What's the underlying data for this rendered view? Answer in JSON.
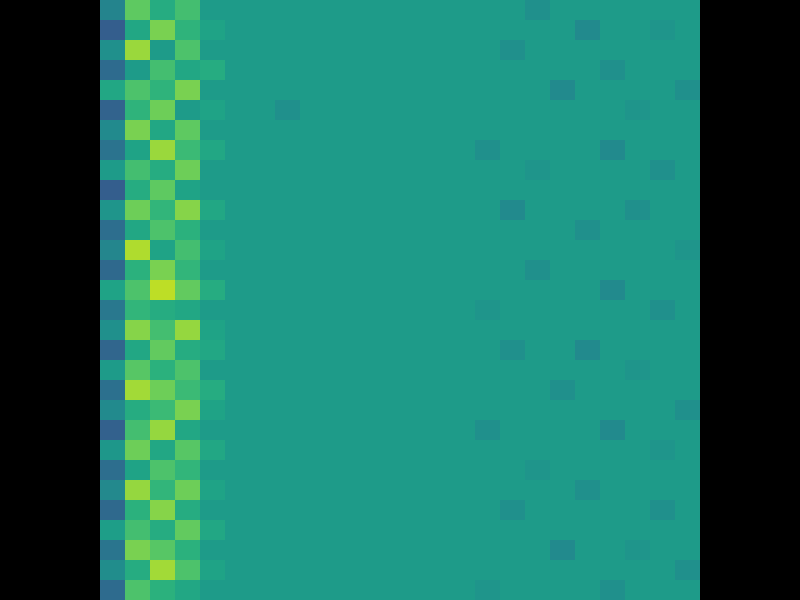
{
  "chart_data": {
    "type": "heatmap",
    "color": "viridis",
    "tick_labels": false,
    "color_range": [
      0,
      1
    ],
    "cells": [
      [
        0.45,
        0.75,
        0.62,
        0.7,
        0.55,
        0.55,
        0.55,
        0.55,
        0.55,
        0.55,
        0.55,
        0.55,
        0.55,
        0.55,
        0.55,
        0.55,
        0.55,
        0.5,
        0.55,
        0.55,
        0.55,
        0.55,
        0.55,
        0.55
      ],
      [
        0.3,
        0.6,
        0.8,
        0.65,
        0.58,
        0.55,
        0.55,
        0.55,
        0.55,
        0.55,
        0.55,
        0.55,
        0.55,
        0.55,
        0.55,
        0.55,
        0.55,
        0.55,
        0.55,
        0.48,
        0.55,
        0.55,
        0.52,
        0.55
      ],
      [
        0.5,
        0.85,
        0.55,
        0.72,
        0.55,
        0.55,
        0.55,
        0.55,
        0.55,
        0.55,
        0.55,
        0.55,
        0.55,
        0.55,
        0.55,
        0.55,
        0.5,
        0.55,
        0.55,
        0.55,
        0.55,
        0.55,
        0.55,
        0.55
      ],
      [
        0.35,
        0.55,
        0.7,
        0.6,
        0.62,
        0.55,
        0.55,
        0.55,
        0.55,
        0.55,
        0.55,
        0.55,
        0.55,
        0.55,
        0.55,
        0.55,
        0.55,
        0.55,
        0.55,
        0.55,
        0.5,
        0.55,
        0.55,
        0.55
      ],
      [
        0.6,
        0.72,
        0.65,
        0.8,
        0.55,
        0.55,
        0.55,
        0.55,
        0.55,
        0.55,
        0.55,
        0.55,
        0.55,
        0.55,
        0.55,
        0.55,
        0.55,
        0.55,
        0.48,
        0.55,
        0.55,
        0.55,
        0.55,
        0.5
      ],
      [
        0.32,
        0.65,
        0.78,
        0.55,
        0.58,
        0.55,
        0.55,
        0.5,
        0.55,
        0.55,
        0.55,
        0.55,
        0.55,
        0.55,
        0.55,
        0.55,
        0.55,
        0.55,
        0.55,
        0.55,
        0.55,
        0.52,
        0.55,
        0.55
      ],
      [
        0.48,
        0.8,
        0.6,
        0.75,
        0.55,
        0.55,
        0.55,
        0.55,
        0.55,
        0.55,
        0.55,
        0.55,
        0.55,
        0.55,
        0.55,
        0.55,
        0.55,
        0.55,
        0.55,
        0.55,
        0.55,
        0.55,
        0.55,
        0.55
      ],
      [
        0.38,
        0.58,
        0.85,
        0.68,
        0.6,
        0.55,
        0.55,
        0.55,
        0.55,
        0.55,
        0.55,
        0.55,
        0.55,
        0.55,
        0.55,
        0.5,
        0.55,
        0.55,
        0.55,
        0.55,
        0.48,
        0.55,
        0.55,
        0.55
      ],
      [
        0.55,
        0.7,
        0.62,
        0.78,
        0.55,
        0.55,
        0.55,
        0.55,
        0.55,
        0.55,
        0.55,
        0.55,
        0.55,
        0.55,
        0.55,
        0.55,
        0.55,
        0.52,
        0.55,
        0.55,
        0.55,
        0.55,
        0.5,
        0.55
      ],
      [
        0.3,
        0.62,
        0.75,
        0.58,
        0.55,
        0.55,
        0.55,
        0.55,
        0.55,
        0.55,
        0.55,
        0.55,
        0.55,
        0.55,
        0.55,
        0.55,
        0.55,
        0.55,
        0.55,
        0.55,
        0.55,
        0.55,
        0.55,
        0.55
      ],
      [
        0.52,
        0.78,
        0.66,
        0.82,
        0.6,
        0.55,
        0.55,
        0.55,
        0.55,
        0.55,
        0.55,
        0.55,
        0.55,
        0.55,
        0.55,
        0.55,
        0.48,
        0.55,
        0.55,
        0.55,
        0.55,
        0.5,
        0.55,
        0.55
      ],
      [
        0.36,
        0.6,
        0.72,
        0.64,
        0.55,
        0.55,
        0.55,
        0.55,
        0.55,
        0.55,
        0.55,
        0.55,
        0.55,
        0.55,
        0.55,
        0.55,
        0.55,
        0.55,
        0.55,
        0.5,
        0.55,
        0.55,
        0.55,
        0.55
      ],
      [
        0.46,
        0.88,
        0.58,
        0.7,
        0.58,
        0.55,
        0.55,
        0.55,
        0.55,
        0.55,
        0.55,
        0.55,
        0.55,
        0.55,
        0.55,
        0.55,
        0.55,
        0.55,
        0.55,
        0.55,
        0.55,
        0.55,
        0.55,
        0.52
      ],
      [
        0.34,
        0.64,
        0.8,
        0.66,
        0.55,
        0.55,
        0.55,
        0.55,
        0.55,
        0.55,
        0.55,
        0.55,
        0.55,
        0.55,
        0.55,
        0.55,
        0.55,
        0.5,
        0.55,
        0.55,
        0.55,
        0.55,
        0.55,
        0.55
      ],
      [
        0.58,
        0.72,
        0.9,
        0.76,
        0.62,
        0.55,
        0.55,
        0.55,
        0.55,
        0.55,
        0.55,
        0.55,
        0.55,
        0.55,
        0.55,
        0.55,
        0.55,
        0.55,
        0.55,
        0.55,
        0.48,
        0.55,
        0.55,
        0.55
      ],
      [
        0.4,
        0.66,
        0.62,
        0.6,
        0.55,
        0.55,
        0.55,
        0.55,
        0.55,
        0.55,
        0.55,
        0.55,
        0.55,
        0.55,
        0.55,
        0.52,
        0.55,
        0.55,
        0.55,
        0.55,
        0.55,
        0.55,
        0.5,
        0.55
      ],
      [
        0.5,
        0.82,
        0.7,
        0.84,
        0.58,
        0.55,
        0.55,
        0.55,
        0.55,
        0.55,
        0.55,
        0.55,
        0.55,
        0.55,
        0.55,
        0.55,
        0.55,
        0.55,
        0.55,
        0.55,
        0.55,
        0.55,
        0.55,
        0.55
      ],
      [
        0.33,
        0.6,
        0.76,
        0.62,
        0.6,
        0.55,
        0.55,
        0.55,
        0.55,
        0.55,
        0.55,
        0.55,
        0.55,
        0.55,
        0.55,
        0.55,
        0.5,
        0.55,
        0.55,
        0.48,
        0.55,
        0.55,
        0.55,
        0.55
      ],
      [
        0.55,
        0.74,
        0.64,
        0.72,
        0.55,
        0.55,
        0.55,
        0.55,
        0.55,
        0.55,
        0.55,
        0.55,
        0.55,
        0.55,
        0.55,
        0.55,
        0.55,
        0.55,
        0.55,
        0.55,
        0.55,
        0.52,
        0.55,
        0.55
      ],
      [
        0.37,
        0.86,
        0.78,
        0.68,
        0.62,
        0.55,
        0.55,
        0.55,
        0.55,
        0.55,
        0.55,
        0.55,
        0.55,
        0.55,
        0.55,
        0.55,
        0.55,
        0.55,
        0.5,
        0.55,
        0.55,
        0.55,
        0.55,
        0.55
      ],
      [
        0.48,
        0.62,
        0.68,
        0.8,
        0.58,
        0.55,
        0.55,
        0.55,
        0.55,
        0.55,
        0.55,
        0.55,
        0.55,
        0.55,
        0.55,
        0.55,
        0.55,
        0.55,
        0.55,
        0.55,
        0.55,
        0.55,
        0.55,
        0.5
      ],
      [
        0.31,
        0.7,
        0.84,
        0.6,
        0.55,
        0.55,
        0.55,
        0.55,
        0.55,
        0.55,
        0.55,
        0.55,
        0.55,
        0.55,
        0.55,
        0.5,
        0.55,
        0.55,
        0.55,
        0.55,
        0.48,
        0.55,
        0.55,
        0.55
      ],
      [
        0.53,
        0.78,
        0.6,
        0.74,
        0.6,
        0.55,
        0.55,
        0.55,
        0.55,
        0.55,
        0.55,
        0.55,
        0.55,
        0.55,
        0.55,
        0.55,
        0.55,
        0.55,
        0.55,
        0.55,
        0.55,
        0.55,
        0.52,
        0.55
      ],
      [
        0.36,
        0.58,
        0.72,
        0.66,
        0.55,
        0.55,
        0.55,
        0.55,
        0.55,
        0.55,
        0.55,
        0.55,
        0.55,
        0.55,
        0.55,
        0.55,
        0.55,
        0.52,
        0.55,
        0.55,
        0.55,
        0.55,
        0.55,
        0.55
      ],
      [
        0.47,
        0.84,
        0.66,
        0.78,
        0.58,
        0.55,
        0.55,
        0.55,
        0.55,
        0.55,
        0.55,
        0.55,
        0.55,
        0.55,
        0.55,
        0.55,
        0.55,
        0.55,
        0.55,
        0.5,
        0.55,
        0.55,
        0.55,
        0.55
      ],
      [
        0.34,
        0.64,
        0.82,
        0.62,
        0.55,
        0.55,
        0.55,
        0.55,
        0.55,
        0.55,
        0.55,
        0.55,
        0.55,
        0.55,
        0.55,
        0.55,
        0.5,
        0.55,
        0.55,
        0.55,
        0.55,
        0.55,
        0.5,
        0.55
      ],
      [
        0.56,
        0.7,
        0.62,
        0.76,
        0.6,
        0.55,
        0.55,
        0.55,
        0.55,
        0.55,
        0.55,
        0.55,
        0.55,
        0.55,
        0.55,
        0.55,
        0.55,
        0.55,
        0.55,
        0.55,
        0.55,
        0.55,
        0.55,
        0.55
      ],
      [
        0.39,
        0.8,
        0.74,
        0.64,
        0.55,
        0.55,
        0.55,
        0.55,
        0.55,
        0.55,
        0.55,
        0.55,
        0.55,
        0.55,
        0.55,
        0.55,
        0.55,
        0.55,
        0.48,
        0.55,
        0.55,
        0.52,
        0.55,
        0.55
      ],
      [
        0.49,
        0.62,
        0.86,
        0.72,
        0.58,
        0.55,
        0.55,
        0.55,
        0.55,
        0.55,
        0.55,
        0.55,
        0.55,
        0.55,
        0.55,
        0.55,
        0.55,
        0.55,
        0.55,
        0.55,
        0.55,
        0.55,
        0.55,
        0.5
      ],
      [
        0.35,
        0.72,
        0.64,
        0.6,
        0.55,
        0.55,
        0.55,
        0.55,
        0.55,
        0.55,
        0.55,
        0.55,
        0.55,
        0.55,
        0.55,
        0.52,
        0.55,
        0.55,
        0.55,
        0.55,
        0.5,
        0.55,
        0.55,
        0.55
      ]
    ]
  }
}
